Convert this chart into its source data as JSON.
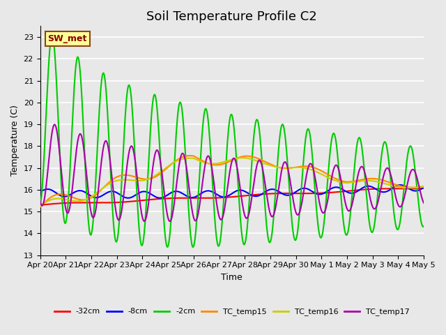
{
  "title": "Soil Temperature Profile C2",
  "xlabel": "Time",
  "ylabel": "Temperature (C)",
  "ylim": [
    13.0,
    23.5
  ],
  "yticks": [
    13.0,
    14.0,
    15.0,
    16.0,
    17.0,
    18.0,
    19.0,
    20.0,
    21.0,
    22.0,
    23.0
  ],
  "background_color": "#e8e8e8",
  "plot_bg_color": "#e8e8e8",
  "grid_color": "#ffffff",
  "annotation_text": "SW_met",
  "annotation_bg": "#ffff99",
  "annotation_border": "#8b4513",
  "annotation_text_color": "#8b0000",
  "series": {
    "-32cm": {
      "color": "#ff0000",
      "lw": 1.5
    },
    "-8cm": {
      "color": "#0000ff",
      "lw": 1.5
    },
    "-2cm": {
      "color": "#00cc00",
      "lw": 1.5
    },
    "TC_temp15": {
      "color": "#ff8800",
      "lw": 1.5
    },
    "TC_temp16": {
      "color": "#cccc00",
      "lw": 1.5
    },
    "TC_temp17": {
      "color": "#aa00aa",
      "lw": 1.5
    }
  },
  "xtick_labels": [
    "Apr 20",
    "Apr 21",
    "Apr 22",
    "Apr 23",
    "Apr 24",
    "Apr 25",
    "Apr 26",
    "Apr 27",
    "Apr 28",
    "Apr 29",
    "Apr 30",
    "May 1",
    "May 2",
    "May 3",
    "May 4",
    "May 5"
  ],
  "n_days": 15,
  "pts_per_day": 48,
  "title_fontsize": 13,
  "tick_fontsize": 8,
  "label_fontsize": 9
}
